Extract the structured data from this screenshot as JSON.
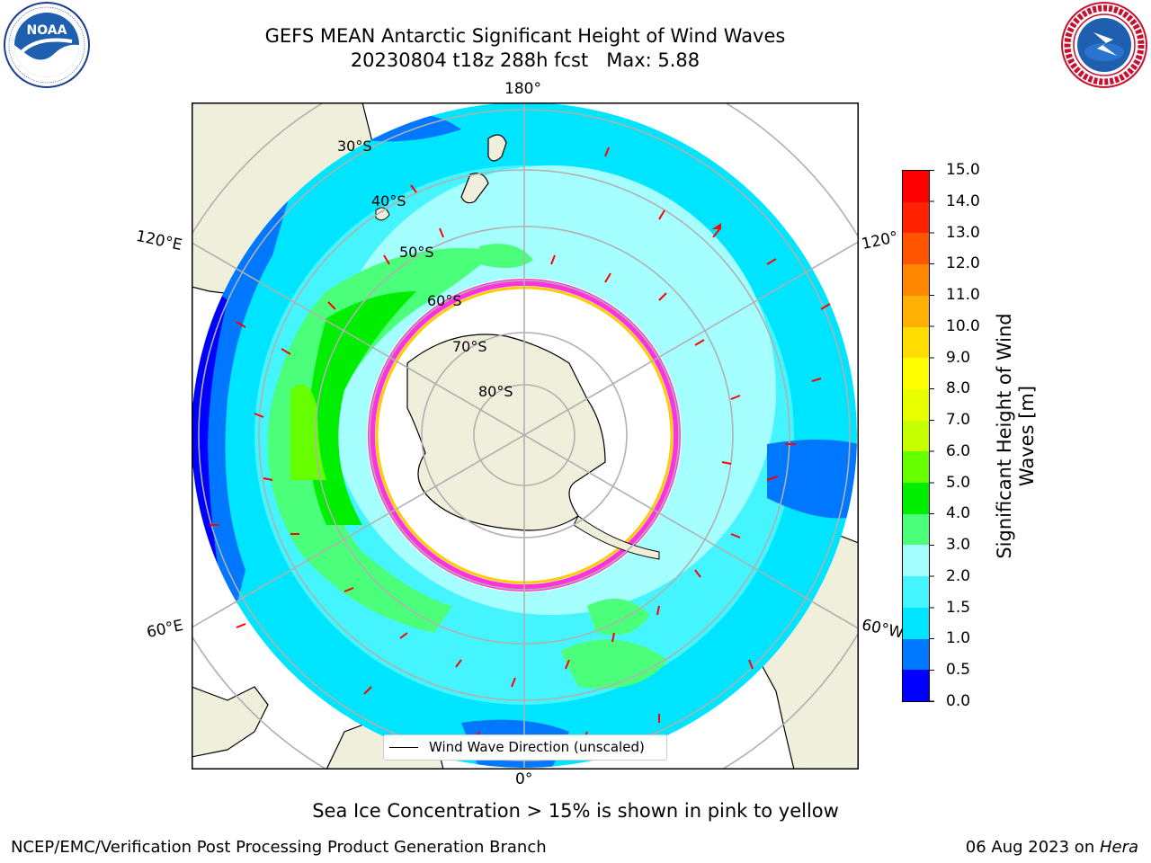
{
  "header": {
    "title_line1": "GEFS MEAN Antarctic Significant Height of Wind Waves",
    "title_line2": "20230804 t18z 288h fcst   Max: 5.88"
  },
  "logos": {
    "left": {
      "name": "NOAA",
      "text": "NOAA",
      "ring_text": "NATIONAL OCEANIC AND ATMOSPHERIC ADMINISTRATION · U.S. DEPARTMENT OF COMMERCE"
    },
    "right": {
      "name": "National Weather Service",
      "ring_text": "NATIONAL WEATHER SERVICE"
    }
  },
  "map": {
    "projection": "south polar stereographic",
    "lon_labels": {
      "top": "180°",
      "bottom": "0°",
      "upper_left": "120°E",
      "lower_left": "60°E",
      "upper_right": "120°",
      "lower_right": "60°W"
    },
    "lat_labels": [
      "30°S",
      "40°S",
      "50°S",
      "60°S",
      "70°S",
      "80°S"
    ],
    "legend_label": "Wind Wave Direction (unscaled)"
  },
  "colorbar": {
    "label_line1": "Significant Height of Wind",
    "label_line2": "Waves [m]",
    "ticks": [
      "0.0",
      "0.5",
      "1.0",
      "1.5",
      "2.0",
      "3.0",
      "4.0",
      "5.0",
      "6.0",
      "7.0",
      "8.0",
      "9.0",
      "10.0",
      "11.0",
      "12.0",
      "13.0",
      "14.0",
      "15.0"
    ],
    "colors": [
      "#0000ff",
      "#0077ff",
      "#00e5ff",
      "#44f5ff",
      "#a6ffff",
      "#4cff7a",
      "#00ee00",
      "#66ff00",
      "#c6ff00",
      "#e8ff00",
      "#ffff00",
      "#ffdd00",
      "#ffb000",
      "#ff8800",
      "#ff5500",
      "#ff2200",
      "#ff0000"
    ]
  },
  "caption": "Sea Ice Concentration > 15% is shown in pink to yellow",
  "footer": {
    "left": "NCEP/EMC/Verification Post Processing Product Generation Branch",
    "right_date": "06 Aug 2023 on ",
    "right_host": "Hera"
  }
}
